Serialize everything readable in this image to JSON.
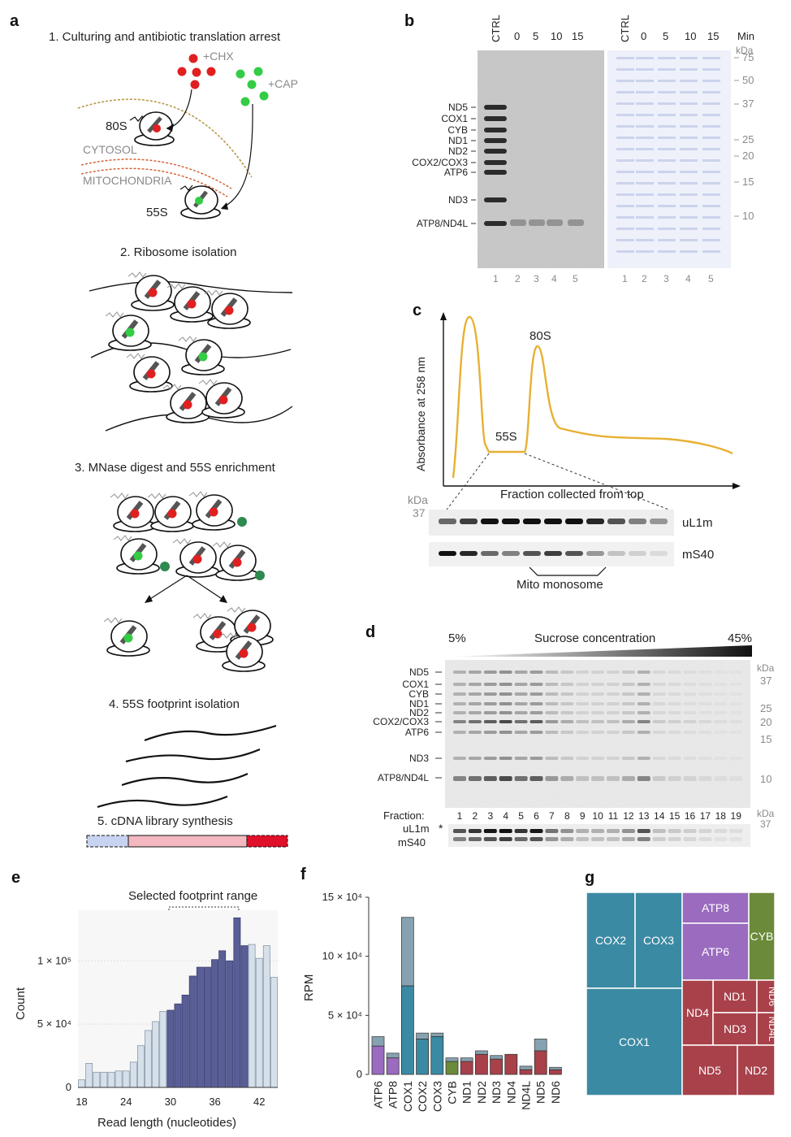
{
  "panels": {
    "a": {
      "label": "a",
      "step1": "1. Culturing and antibiotic translation arrest",
      "chx": "+CHX",
      "cap": "+CAP",
      "ribo80": "80S",
      "cytosol": "CYTOSOL",
      "mito": "MITOCHONDRIA",
      "ribo55": "55S",
      "step2": "2. Ribosome isolation",
      "step3": "3. MNase digest and 55S enrichment",
      "step4": "4. 55S footprint isolation",
      "step5": "5. cDNA library synthesis"
    },
    "b": {
      "label": "b",
      "lane_headers": [
        "CTRL",
        "0",
        "5",
        "10",
        "15"
      ],
      "min_label": "Min",
      "kda": "kDa",
      "kda_ticks": [
        "75",
        "50",
        "37",
        "25",
        "20",
        "15",
        "10"
      ],
      "proteins": [
        "ND5",
        "COX1",
        "CYB",
        "ND1",
        "ND2",
        "COX2/COX3",
        "ATP6",
        "ND3",
        "ATP8/ND4L"
      ],
      "lane_numbers": [
        "1",
        "2",
        "3",
        "4",
        "5"
      ]
    },
    "c": {
      "label": "c",
      "ylabel": "Absorbance at 258 nm",
      "xlabel": "Fraction collected from top",
      "peak80": "80S",
      "peak55": "55S",
      "kda": "kDa",
      "kda37": "37",
      "blot1": "uL1m",
      "blot2": "mS40",
      "bracket": "Mito monosome"
    },
    "d": {
      "label": "d",
      "low": "5%",
      "title": "Sucrose concentration",
      "high": "45%",
      "proteins": [
        "ND5",
        "COX1",
        "CYB",
        "ND1",
        "ND2",
        "COX2/COX3",
        "ATP6",
        "ND3",
        "ATP8/ND4L"
      ],
      "kda": "kDa",
      "kda_ticks": [
        "37",
        "25",
        "20",
        "15",
        "10"
      ],
      "fraction_label": "Fraction:",
      "fractions": [
        "1",
        "2",
        "3",
        "4",
        "5",
        "6",
        "7",
        "8",
        "9",
        "10",
        "11",
        "12",
        "13",
        "14",
        "15",
        "16",
        "17",
        "18",
        "19"
      ],
      "blot1": "uL1m",
      "blot2": "mS40",
      "star": "*",
      "kda2": "kDa",
      "kda2_37": "37"
    },
    "e": {
      "label": "e",
      "annotation": "Selected footprint range"
    },
    "f": {
      "label": "f"
    },
    "g": {
      "label": "g"
    }
  },
  "chart_data": [
    {
      "type": "bar",
      "panel": "e",
      "xlabel": "Read length (nucleotides)",
      "ylabel": "Count",
      "x": [
        18,
        19,
        20,
        21,
        22,
        23,
        24,
        25,
        26,
        27,
        28,
        29,
        30,
        31,
        32,
        33,
        34,
        35,
        36,
        37,
        38,
        39,
        40,
        41,
        42,
        43,
        44
      ],
      "values": [
        6000,
        19000,
        12000,
        12000,
        12000,
        13000,
        13000,
        20000,
        33000,
        45000,
        52000,
        60000,
        61000,
        66000,
        73000,
        88000,
        95000,
        95000,
        101000,
        108000,
        100000,
        134000,
        112000,
        113000,
        102000,
        112000,
        87000
      ],
      "selected_range": [
        30,
        40
      ],
      "xticks": [
        "18",
        "24",
        "30",
        "36",
        "42"
      ],
      "ytick_labels": [
        "0",
        "5 × 10⁴",
        "1 × 10⁵"
      ],
      "ytick_values": [
        0,
        50000,
        100000
      ],
      "ylim": [
        0,
        140000
      ],
      "colors": {
        "selected": "#5a5e97",
        "other": "#d6e0ea"
      }
    },
    {
      "type": "bar",
      "panel": "f",
      "ylabel": "RPM",
      "categories": [
        "ATP6",
        "ATP8",
        "COX1",
        "COX2",
        "COX3",
        "CYB",
        "ND1",
        "ND2",
        "ND3",
        "ND4",
        "ND4L",
        "ND5",
        "ND6"
      ],
      "series": [
        {
          "values": [
            24000,
            14000,
            75000,
            30000,
            32000,
            11000,
            11000,
            17000,
            13000,
            17000,
            4000,
            20000,
            4000
          ]
        },
        {
          "values": [
            8000,
            4000,
            58000,
            5000,
            3000,
            3000,
            3000,
            3000,
            3000,
            0,
            3000,
            10000,
            2000
          ]
        }
      ],
      "ytick_labels": [
        "0",
        "5 × 10⁴",
        "10 × 10⁴",
        "15 × 10⁴"
      ],
      "ytick_values": [
        0,
        50000,
        100000,
        150000
      ],
      "ylim": [
        0,
        150000
      ],
      "colors": [
        "#9a6bbf",
        "#9a6bbf",
        "#3b8aa3",
        "#3b8aa3",
        "#3b8aa3",
        "#6b8a3a",
        "#a8414a",
        "#a8414a",
        "#a8414a",
        "#a8414a",
        "#a8414a",
        "#a8414a",
        "#a8414a"
      ]
    },
    {
      "type": "treemap",
      "panel": "g",
      "labels": [
        "COX2",
        "COX3",
        "COX1",
        "ATP8",
        "ATP6",
        "CYB",
        "ND1",
        "ND4",
        "ND6",
        "ND3",
        "ND4L",
        "ND5",
        "ND2"
      ],
      "colors": {
        "COX": "#3b8aa3",
        "ATP": "#9a6bbf",
        "CYB": "#6b8a3a",
        "ND": "#a8414a"
      }
    }
  ]
}
